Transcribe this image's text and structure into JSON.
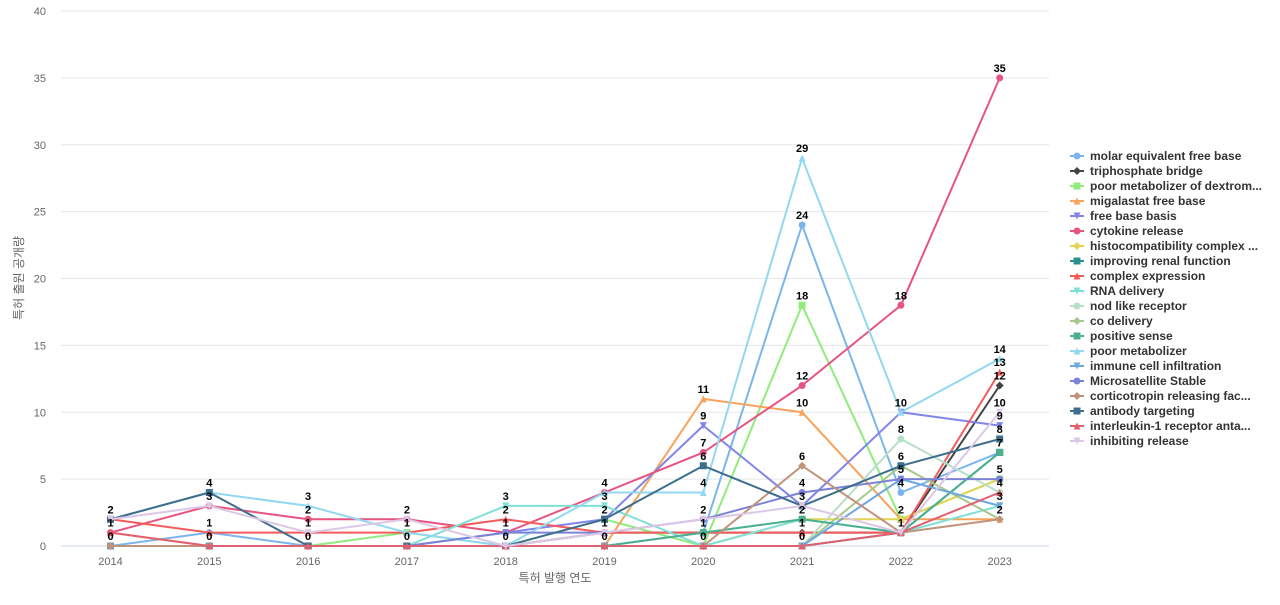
{
  "chart_data": {
    "type": "line",
    "title": "",
    "xlabel": "특허 발행 연도",
    "ylabel": "특허 출원 공개량",
    "ylim": [
      0,
      40
    ],
    "yticks": [
      0,
      5,
      10,
      15,
      20,
      25,
      30,
      35,
      40
    ],
    "categories": [
      "2014",
      "2015",
      "2016",
      "2017",
      "2018",
      "2019",
      "2020",
      "2021",
      "2022",
      "2023"
    ],
    "legend_position": "right",
    "series": [
      {
        "name": "molar equivalent free base",
        "color": "#7cb5ec",
        "marker": "circle",
        "values": [
          0,
          1,
          0,
          0,
          0,
          0,
          1,
          24,
          4,
          7
        ]
      },
      {
        "name": "triphosphate bridge",
        "color": "#434348",
        "marker": "diamond",
        "values": [
          0,
          0,
          0,
          0,
          0,
          1,
          1,
          1,
          1,
          12
        ]
      },
      {
        "name": "poor metabolizer of dextrom...",
        "color": "#90ed7d",
        "marker": "square",
        "values": [
          0,
          0,
          0,
          1,
          0,
          2,
          0,
          18,
          2,
          5
        ]
      },
      {
        "name": "migalastat free base",
        "color": "#f7a35c",
        "marker": "triangle",
        "values": [
          1,
          0,
          0,
          0,
          0,
          0,
          11,
          10,
          2,
          2
        ]
      },
      {
        "name": "free base basis",
        "color": "#8085e9",
        "marker": "triangle-down",
        "values": [
          0,
          0,
          0,
          0,
          1,
          2,
          9,
          3,
          10,
          9
        ]
      },
      {
        "name": "cytokine release",
        "color": "#e75480",
        "marker": "circle",
        "values": [
          1,
          3,
          2,
          2,
          1,
          4,
          7,
          12,
          18,
          35
        ]
      },
      {
        "name": "histocompatibility complex ...",
        "color": "#e4d354",
        "marker": "diamond",
        "values": [
          0,
          0,
          0,
          0,
          0,
          0,
          0,
          2,
          2,
          5
        ]
      },
      {
        "name": "improving renal function",
        "color": "#2b908f",
        "marker": "square",
        "values": [
          0,
          0,
          0,
          0,
          0,
          0,
          0,
          0,
          1,
          7
        ]
      },
      {
        "name": "complex expression",
        "color": "#f45b5b",
        "marker": "triangle",
        "values": [
          2,
          1,
          1,
          1,
          2,
          1,
          1,
          1,
          1,
          13
        ]
      },
      {
        "name": "RNA delivery",
        "color": "#7ee0d8",
        "marker": "triangle-down",
        "values": [
          0,
          0,
          0,
          0,
          3,
          3,
          0,
          2,
          1,
          3
        ]
      },
      {
        "name": "nod like receptor",
        "color": "#b7dfc8",
        "marker": "circle",
        "values": [
          0,
          0,
          0,
          0,
          0,
          0,
          0,
          0,
          8,
          4
        ]
      },
      {
        "name": "co delivery",
        "color": "#a5c98a",
        "marker": "diamond",
        "values": [
          0,
          0,
          0,
          0,
          0,
          0,
          0,
          0,
          6,
          2
        ]
      },
      {
        "name": "positive sense",
        "color": "#4caf90",
        "marker": "square",
        "values": [
          0,
          0,
          0,
          0,
          0,
          0,
          1,
          2,
          1,
          7
        ]
      },
      {
        "name": "poor metabolizer",
        "color": "#91d8f0",
        "marker": "triangle",
        "values": [
          2,
          4,
          3,
          1,
          0,
          4,
          4,
          29,
          10,
          14
        ]
      },
      {
        "name": "immune cell infiltration",
        "color": "#6fa8dc",
        "marker": "triangle-down",
        "values": [
          0,
          0,
          0,
          0,
          0,
          0,
          0,
          0,
          5,
          3
        ]
      },
      {
        "name": "Microsatellite Stable",
        "color": "#7b83d6",
        "marker": "circle",
        "values": [
          0,
          0,
          0,
          0,
          1,
          1,
          2,
          4,
          5,
          5
        ]
      },
      {
        "name": "corticotropin releasing fac...",
        "color": "#c0937a",
        "marker": "diamond",
        "values": [
          0,
          0,
          0,
          0,
          0,
          0,
          0,
          6,
          1,
          2
        ]
      },
      {
        "name": "antibody targeting",
        "color": "#3d6e8c",
        "marker": "square",
        "values": [
          2,
          4,
          0,
          0,
          0,
          2,
          6,
          3,
          6,
          8
        ]
      },
      {
        "name": "interleukin-1 receptor anta...",
        "color": "#e06070",
        "marker": "triangle",
        "values": [
          1,
          0,
          0,
          0,
          0,
          0,
          0,
          0,
          1,
          4
        ]
      },
      {
        "name": "inhibiting release",
        "color": "#dcc8e6",
        "marker": "triangle-down",
        "values": [
          2,
          3,
          1,
          2,
          0,
          1,
          2,
          3,
          1,
          10
        ]
      }
    ],
    "data_labels": [
      {
        "x": "2014",
        "y": 2,
        "text": "2"
      },
      {
        "x": "2014",
        "y": 1,
        "text": "1"
      },
      {
        "x": "2014",
        "y": 0,
        "text": "0"
      },
      {
        "x": "2015",
        "y": 4,
        "text": "4"
      },
      {
        "x": "2015",
        "y": 3,
        "text": "3"
      },
      {
        "x": "2015",
        "y": 1,
        "text": "1"
      },
      {
        "x": "2015",
        "y": 0,
        "text": "0"
      },
      {
        "x": "2016",
        "y": 3,
        "text": "3"
      },
      {
        "x": "2016",
        "y": 2,
        "text": "2"
      },
      {
        "x": "2016",
        "y": 1,
        "text": "1"
      },
      {
        "x": "2016",
        "y": 0,
        "text": "0"
      },
      {
        "x": "2017",
        "y": 2,
        "text": "2"
      },
      {
        "x": "2017",
        "y": 1,
        "text": "1"
      },
      {
        "x": "2017",
        "y": 0,
        "text": "0"
      },
      {
        "x": "2018",
        "y": 3,
        "text": "3"
      },
      {
        "x": "2018",
        "y": 2,
        "text": "2"
      },
      {
        "x": "2018",
        "y": 1,
        "text": "1"
      },
      {
        "x": "2018",
        "y": 0,
        "text": "0"
      },
      {
        "x": "2019",
        "y": 4,
        "text": "4"
      },
      {
        "x": "2019",
        "y": 3,
        "text": "3"
      },
      {
        "x": "2019",
        "y": 2,
        "text": "2"
      },
      {
        "x": "2019",
        "y": 1,
        "text": "1"
      },
      {
        "x": "2019",
        "y": 0,
        "text": "0"
      },
      {
        "x": "2020",
        "y": 11,
        "text": "11"
      },
      {
        "x": "2020",
        "y": 9,
        "text": "9"
      },
      {
        "x": "2020",
        "y": 7,
        "text": "7"
      },
      {
        "x": "2020",
        "y": 6,
        "text": "6"
      },
      {
        "x": "2020",
        "y": 4,
        "text": "4"
      },
      {
        "x": "2020",
        "y": 2,
        "text": "2"
      },
      {
        "x": "2020",
        "y": 1,
        "text": "1"
      },
      {
        "x": "2020",
        "y": 0,
        "text": "0"
      },
      {
        "x": "2021",
        "y": 29,
        "text": "29"
      },
      {
        "x": "2021",
        "y": 24,
        "text": "24"
      },
      {
        "x": "2021",
        "y": 18,
        "text": "18"
      },
      {
        "x": "2021",
        "y": 12,
        "text": "12"
      },
      {
        "x": "2021",
        "y": 10,
        "text": "10"
      },
      {
        "x": "2021",
        "y": 6,
        "text": "6"
      },
      {
        "x": "2021",
        "y": 4,
        "text": "4"
      },
      {
        "x": "2021",
        "y": 3,
        "text": "3"
      },
      {
        "x": "2021",
        "y": 2,
        "text": "2"
      },
      {
        "x": "2021",
        "y": 1,
        "text": "1"
      },
      {
        "x": "2021",
        "y": 0,
        "text": "0"
      },
      {
        "x": "2022",
        "y": 18,
        "text": "18"
      },
      {
        "x": "2022",
        "y": 10,
        "text": "10"
      },
      {
        "x": "2022",
        "y": 8,
        "text": "8"
      },
      {
        "x": "2022",
        "y": 6,
        "text": "6"
      },
      {
        "x": "2022",
        "y": 5,
        "text": "5"
      },
      {
        "x": "2022",
        "y": 4,
        "text": "4"
      },
      {
        "x": "2022",
        "y": 2,
        "text": "2"
      },
      {
        "x": "2022",
        "y": 1,
        "text": "1"
      },
      {
        "x": "2023",
        "y": 35,
        "text": "35"
      },
      {
        "x": "2023",
        "y": 14,
        "text": "14"
      },
      {
        "x": "2023",
        "y": 13,
        "text": "13"
      },
      {
        "x": "2023",
        "y": 12,
        "text": "12"
      },
      {
        "x": "2023",
        "y": 10,
        "text": "10"
      },
      {
        "x": "2023",
        "y": 9,
        "text": "9"
      },
      {
        "x": "2023",
        "y": 8,
        "text": "8"
      },
      {
        "x": "2023",
        "y": 7,
        "text": "7"
      },
      {
        "x": "2023",
        "y": 5,
        "text": "5"
      },
      {
        "x": "2023",
        "y": 4,
        "text": "4"
      },
      {
        "x": "2023",
        "y": 3,
        "text": "3"
      },
      {
        "x": "2023",
        "y": 2,
        "text": "2"
      }
    ]
  }
}
